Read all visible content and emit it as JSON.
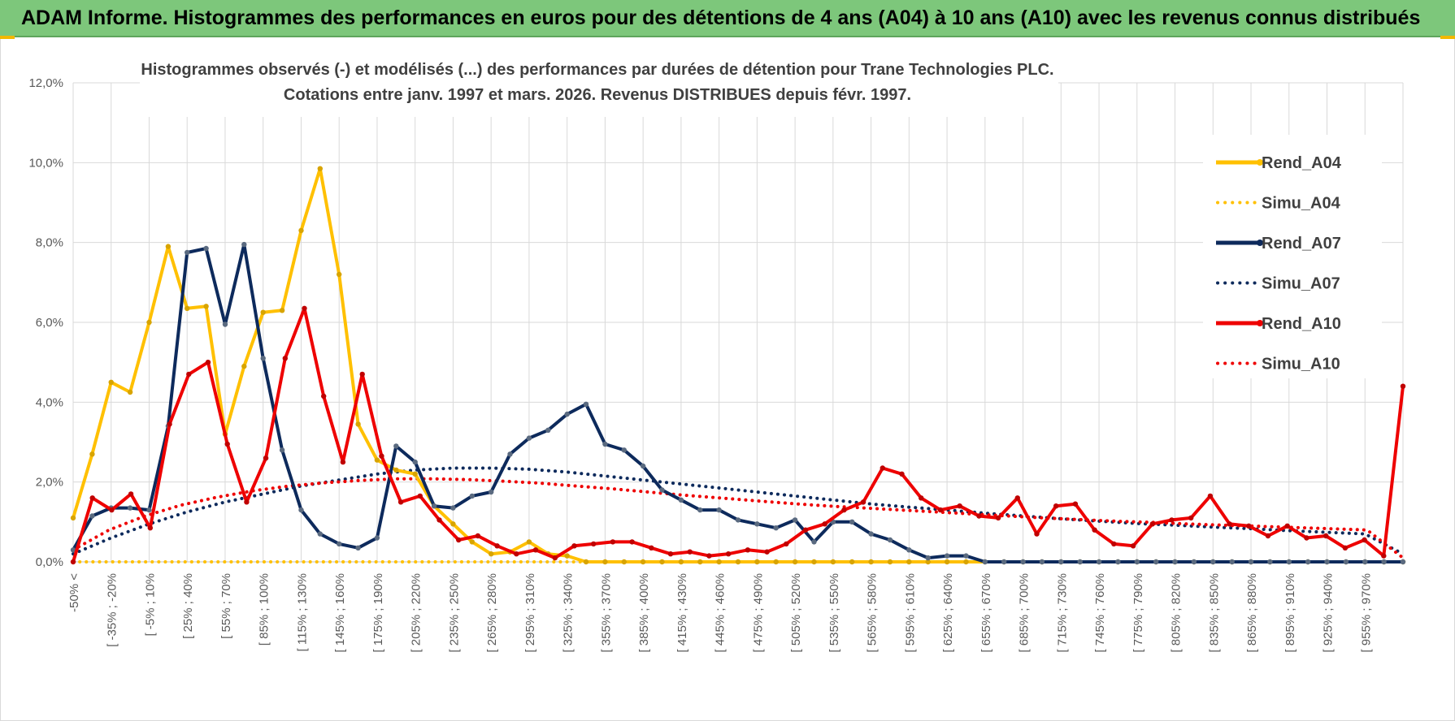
{
  "banner": {
    "title": "ADAM Informe. Histogrammes des performances en euros pour des détentions de 4 ans (A04) à 10 ans (A10) avec les revenus connus distribués"
  },
  "colors": {
    "banner_bg": "#7dc77b",
    "A04": "#ffc000",
    "A07": "#0d2a5c",
    "A10": "#ee0000"
  },
  "chart_data": {
    "type": "line",
    "title_line1": "Histogrammes observés (-) et modélisés (...) des performances par durées de détention pour Trane Technologies PLC.",
    "title_line2": "Cotations entre janv. 1997 et mars. 2026.  Revenus DISTRIBUES depuis févr. 1997.",
    "xlabel": "",
    "ylabel": "",
    "ylim": [
      0,
      12
    ],
    "y_ticks": [
      "0,0%",
      "2,0%",
      "4,0%",
      "6,0%",
      "8,0%",
      "10,0%",
      "12,0%"
    ],
    "grid": true,
    "legend_position": "right",
    "x_labels": [
      "-50% <",
      "[ -35% ; -20%",
      "[ -5% ; 10%",
      "[ 25% ; 40%",
      "[ 55% ; 70%",
      "[ 85% ; 100%",
      "[ 115% ; 130%",
      "[ 145% ; 160%",
      "[ 175% ; 190%",
      "[ 205% ; 220%",
      "[ 235% ; 250%",
      "[ 265% ; 280%",
      "[ 295% ; 310%",
      "[ 325% ; 340%",
      "[ 355% ; 370%",
      "[ 385% ; 400%",
      "[ 415% ; 430%",
      "[ 445% ; 460%",
      "[ 475% ; 490%",
      "[ 505% ; 520%",
      "[ 535% ; 550%",
      "[ 565% ; 580%",
      "[ 595% ; 610%",
      "[ 625% ; 640%",
      "[ 655% ; 670%",
      "[ 685% ; 700%",
      "[ 715% ; 730%",
      "[ 745% ; 760%",
      "[ 775% ; 790%",
      "[ 805% ; 820%",
      "[ 835% ; 850%",
      "[ 865% ; 880%",
      "[ 895% ; 910%",
      "[ 925% ; 940%",
      "[ 955% ; 970%"
    ],
    "series": [
      {
        "name": "Rend_A04",
        "style": "solid",
        "color": "#ffc000",
        "values": [
          1.1,
          2.7,
          4.5,
          4.25,
          6.0,
          7.9,
          6.35,
          6.4,
          3.2,
          4.9,
          6.25,
          6.3,
          8.3,
          9.85,
          7.2,
          3.45,
          2.55,
          2.3,
          2.2,
          1.4,
          0.95,
          0.5,
          0.2,
          0.25,
          0.5,
          0.2,
          0.15,
          0,
          0,
          0,
          0,
          0,
          0,
          0,
          0,
          0,
          0,
          0,
          0,
          0,
          0,
          0,
          0,
          0,
          0,
          0,
          0,
          0,
          0,
          0,
          0,
          0,
          0,
          0,
          0,
          0,
          0,
          0,
          0,
          0,
          0,
          0,
          0,
          0,
          0,
          0,
          0,
          0,
          0,
          0,
          0
        ]
      },
      {
        "name": "Simu_A04",
        "style": "dotted",
        "color": "#ffc000",
        "values": [
          0,
          0,
          0,
          0,
          0,
          0,
          0,
          0,
          0,
          0,
          0,
          0,
          0,
          0,
          0,
          0,
          0,
          0,
          0,
          0,
          0,
          0,
          0,
          0,
          0,
          0,
          0,
          0,
          0,
          0,
          0,
          0,
          0,
          0,
          0,
          0,
          0,
          0,
          0,
          0,
          0,
          0,
          0,
          0,
          0,
          0,
          0,
          0,
          0,
          0,
          0
        ]
      },
      {
        "name": "Rend_A07",
        "style": "solid",
        "color": "#0d2a5c",
        "values": [
          0.3,
          1.15,
          1.35,
          1.35,
          1.3,
          3.4,
          7.75,
          7.85,
          5.95,
          7.95,
          5.1,
          2.8,
          1.3,
          0.7,
          0.45,
          0.35,
          0.6,
          2.9,
          2.5,
          1.4,
          1.35,
          1.65,
          1.75,
          2.7,
          3.1,
          3.3,
          3.7,
          3.95,
          2.95,
          2.8,
          2.4,
          1.8,
          1.55,
          1.3,
          1.3,
          1.05,
          0.95,
          0.85,
          1.05,
          0.5,
          1.0,
          1.0,
          0.7,
          0.55,
          0.3,
          0.1,
          0.15,
          0.15,
          0,
          0,
          0,
          0,
          0,
          0,
          0,
          0,
          0,
          0,
          0,
          0,
          0,
          0,
          0,
          0,
          0,
          0,
          0,
          0,
          0,
          0,
          0
        ]
      },
      {
        "name": "Simu_A07",
        "style": "dotted",
        "color": "#0d2a5c",
        "values": [
          0.2,
          0.6,
          0.95,
          1.25,
          1.5,
          1.7,
          1.9,
          2.05,
          2.2,
          2.3,
          2.35,
          2.35,
          2.32,
          2.25,
          2.15,
          2.05,
          1.95,
          1.85,
          1.75,
          1.65,
          1.55,
          1.45,
          1.37,
          1.3,
          1.22,
          1.15,
          1.08,
          1.02,
          0.96,
          0.92,
          0.87,
          0.83,
          0.78,
          0.74,
          0.7,
          0.2
        ]
      },
      {
        "name": "Rend_A10",
        "style": "solid",
        "color": "#ee0000",
        "values": [
          0,
          1.6,
          1.3,
          1.7,
          0.85,
          3.45,
          4.7,
          5.0,
          2.95,
          1.5,
          2.6,
          5.1,
          6.35,
          4.15,
          2.5,
          4.7,
          2.65,
          1.5,
          1.65,
          1.05,
          0.55,
          0.65,
          0.4,
          0.2,
          0.3,
          0.1,
          0.4,
          0.45,
          0.5,
          0.5,
          0.35,
          0.2,
          0.25,
          0.15,
          0.2,
          0.3,
          0.25,
          0.45,
          0.8,
          0.95,
          1.3,
          1.5,
          2.35,
          2.2,
          1.6,
          1.3,
          1.4,
          1.15,
          1.1,
          1.6,
          0.7,
          1.4,
          1.45,
          0.8,
          0.45,
          0.4,
          0.95,
          1.05,
          1.1,
          1.65,
          0.95,
          0.9,
          0.65,
          0.9,
          0.6,
          0.65,
          0.35,
          0.55,
          0.15,
          4.4
        ]
      },
      {
        "name": "Simu_A10",
        "style": "dotted",
        "color": "#ee0000",
        "values": [
          0.3,
          0.8,
          1.15,
          1.42,
          1.62,
          1.78,
          1.9,
          1.98,
          2.04,
          2.08,
          2.08,
          2.06,
          2.02,
          1.97,
          1.9,
          1.83,
          1.75,
          1.67,
          1.6,
          1.53,
          1.46,
          1.4,
          1.35,
          1.3,
          1.25,
          1.2,
          1.15,
          1.1,
          1.06,
          1.02,
          0.99,
          0.95,
          0.92,
          0.89,
          0.86,
          0.83,
          0.8,
          0.1
        ]
      }
    ]
  }
}
